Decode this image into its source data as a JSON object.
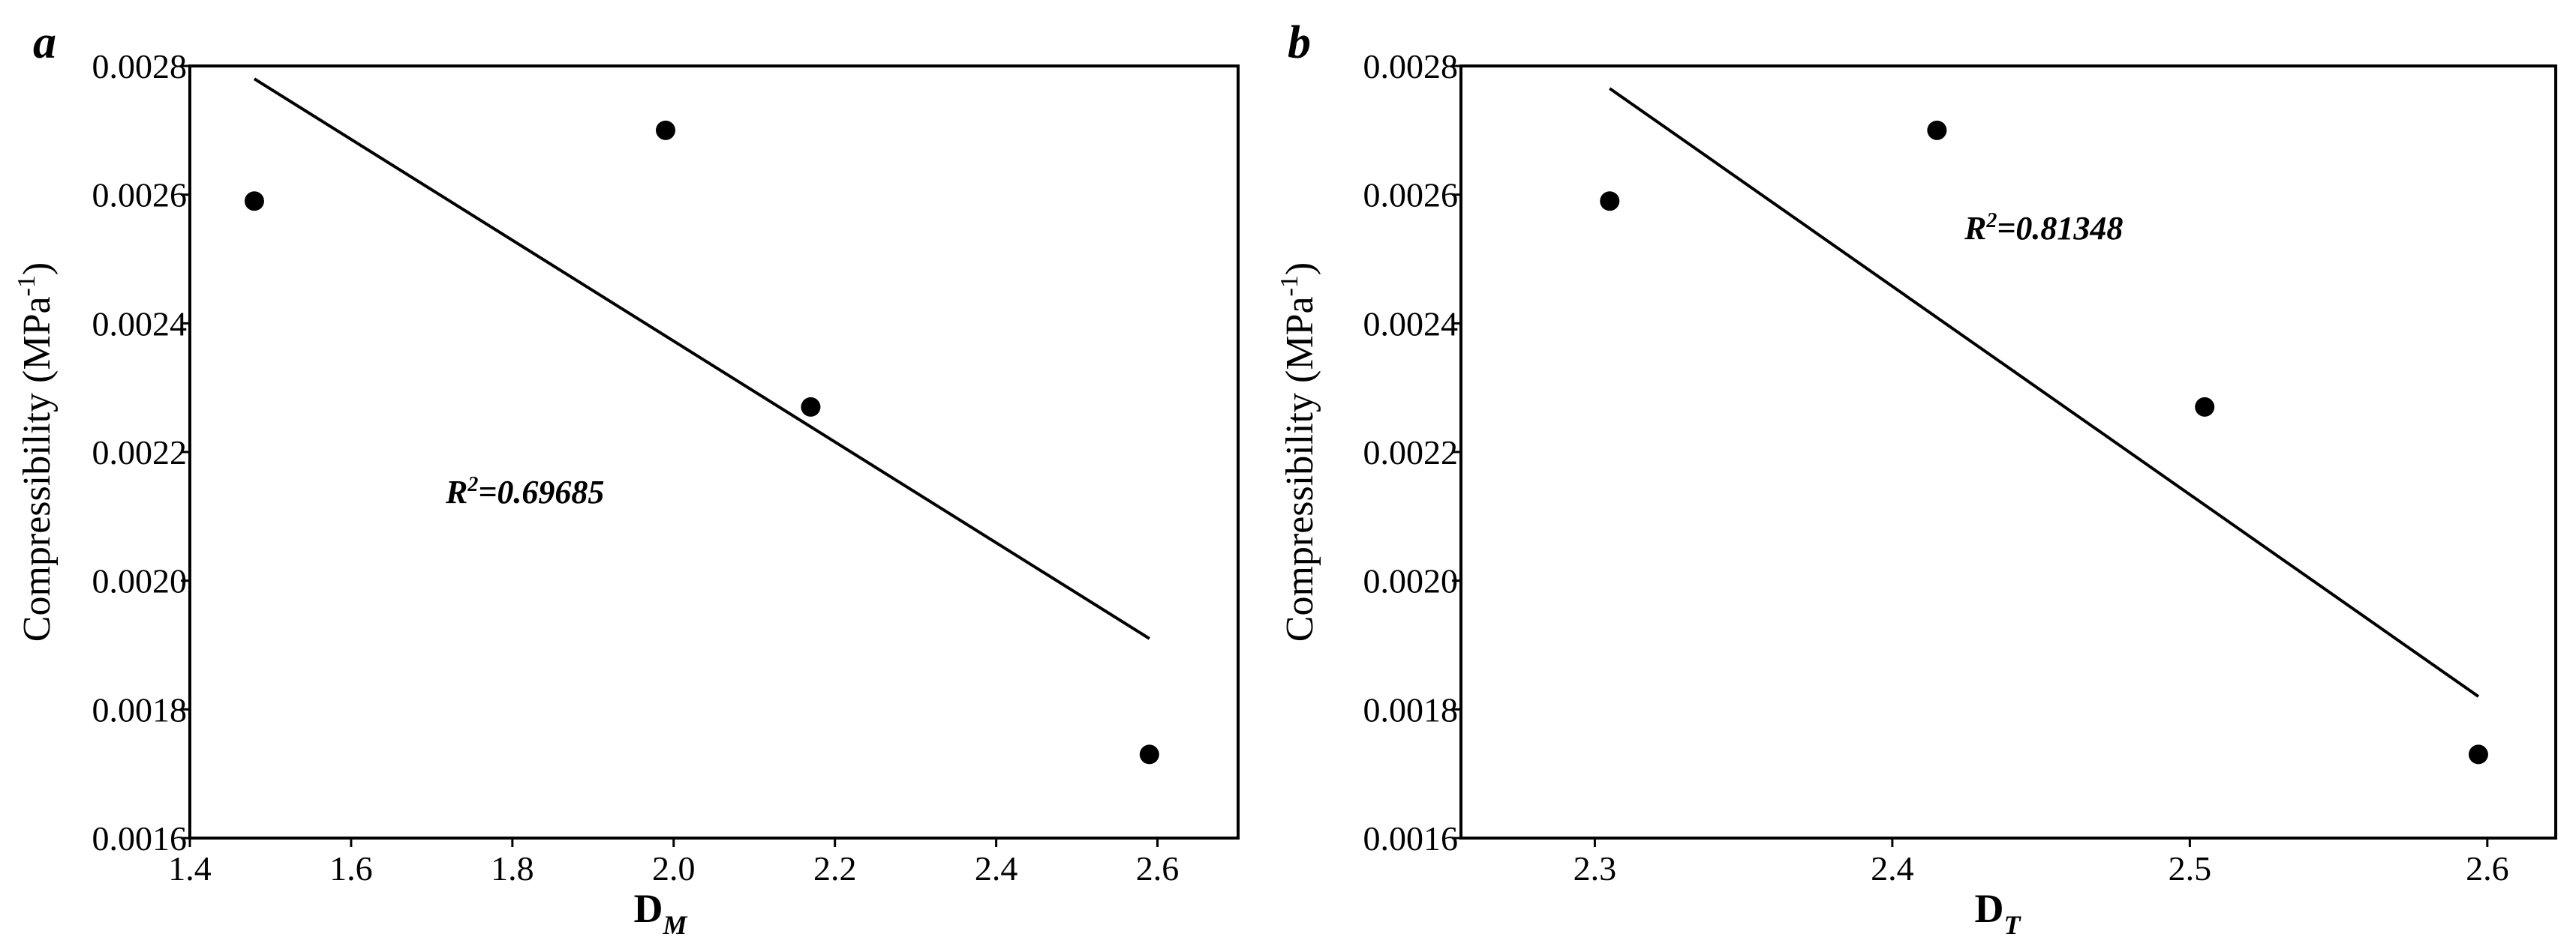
{
  "chart_data": [
    {
      "type": "scatter",
      "panel_label": "a",
      "x_label": {
        "main": "D",
        "sub": "M"
      },
      "y_label": {
        "main": "Compressibility (MPa",
        "sup": "-1",
        "end": ")"
      },
      "annotation": {
        "prefix": "R",
        "sup": "2",
        "text": "=0.69685"
      },
      "color": "#000000",
      "x": [
        1.48,
        1.99,
        2.17,
        2.59
      ],
      "values": [
        0.00259,
        0.0027,
        0.00227,
        0.00173
      ],
      "fit_line": {
        "x": [
          1.48,
          2.59
        ],
        "y": [
          0.00278,
          0.00191
        ]
      },
      "xlim": [
        1.4,
        2.7
      ],
      "xticks": [
        1.4,
        1.6,
        1.8,
        {
          "value": 2,
          "label": "2.0"
        },
        2.2,
        2.4,
        2.6
      ],
      "ylim": [
        0.0016,
        0.0028
      ],
      "yticks": [
        0.0016,
        0.0018,
        {
          "value": 0.002,
          "label": "0.0020"
        },
        0.0022,
        0.0024,
        0.0026,
        0.0028
      ]
    },
    {
      "type": "scatter",
      "panel_label": "b",
      "x_label": {
        "main": "D",
        "sub": "T"
      },
      "y_label": {
        "main": "Compressibility (MPa",
        "sup": "-1",
        "end": ")"
      },
      "annotation": {
        "prefix": "R",
        "sup": "2",
        "text": "=0.81348"
      },
      "color": "#000000",
      "x": [
        2.305,
        2.415,
        2.505,
        2.597
      ],
      "values": [
        0.00259,
        0.0027,
        0.00227,
        0.00173
      ],
      "fit_line": {
        "x": [
          2.305,
          2.597
        ],
        "y": [
          0.002765,
          0.00182
        ]
      },
      "xlim": [
        2.255,
        2.623
      ],
      "xticks": [
        2.3,
        2.4,
        2.5,
        2.6
      ],
      "ylim": [
        0.0016,
        0.0028
      ],
      "yticks": [
        0.0016,
        0.0018,
        {
          "value": 0.002,
          "label": "0.0020"
        },
        0.0022,
        0.0024,
        0.0026,
        0.0028
      ]
    }
  ]
}
